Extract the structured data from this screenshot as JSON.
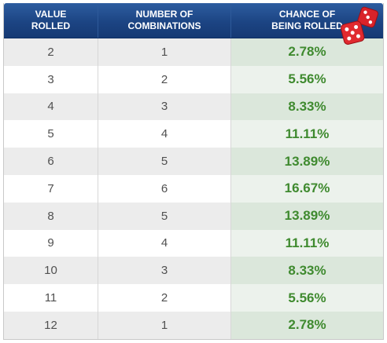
{
  "colors": {
    "header_blue": "#1c4483",
    "percent_green": "#3f8a2f",
    "dice_red": "#d9232a"
  },
  "header": {
    "value_rolled": "VALUE\nROLLED",
    "combinations": "NUMBER OF\nCOMBINATIONS",
    "chance": "CHANCE OF\nBEING ROLLED",
    "icon": "dice-icon"
  },
  "rows": [
    {
      "value": "2",
      "combinations": "1",
      "chance": "2.78%"
    },
    {
      "value": "3",
      "combinations": "2",
      "chance": "5.56%"
    },
    {
      "value": "4",
      "combinations": "3",
      "chance": "8.33%"
    },
    {
      "value": "5",
      "combinations": "4",
      "chance": "11.11%"
    },
    {
      "value": "6",
      "combinations": "5",
      "chance": "13.89%"
    },
    {
      "value": "7",
      "combinations": "6",
      "chance": "16.67%"
    },
    {
      "value": "8",
      "combinations": "5",
      "chance": "13.89%"
    },
    {
      "value": "9",
      "combinations": "4",
      "chance": "11.11%"
    },
    {
      "value": "10",
      "combinations": "3",
      "chance": "8.33%"
    },
    {
      "value": "11",
      "combinations": "2",
      "chance": "5.56%"
    },
    {
      "value": "12",
      "combinations": "1",
      "chance": "2.78%"
    }
  ]
}
